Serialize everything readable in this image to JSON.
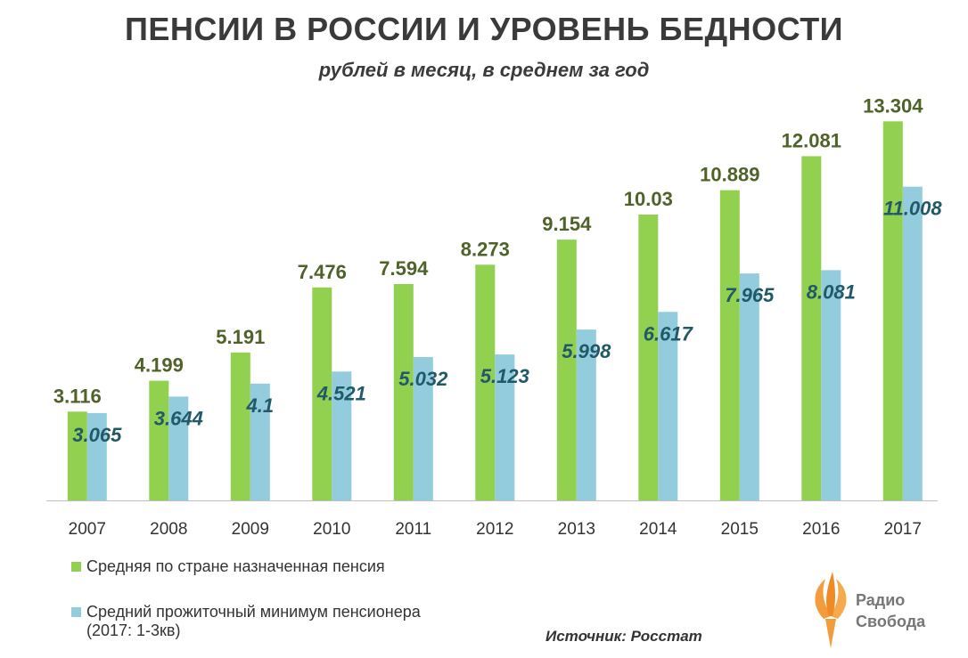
{
  "header": {
    "title": "ПЕНСИИ В РОССИИ И УРОВЕНЬ БЕДНОСТИ",
    "subtitle": "рублей в месяц, в среднем за год"
  },
  "legend": {
    "pension_label": "Средняя по стране назначенная пенсия",
    "minimum_label_line1": "Средний прожиточный минимум пенсионера",
    "minimum_label_line2": "(2017: 1-3кв)"
  },
  "footer": {
    "source": "Источник: Росстат",
    "logo_line1": "Радио",
    "logo_line2": "Свобода"
  },
  "colors": {
    "pension": "#92d050",
    "minimum": "#93cddd",
    "pension_label": "#4f6228",
    "minimum_label": "#215968"
  },
  "chart_data": {
    "type": "bar",
    "categories": [
      "2007",
      "2008",
      "2009",
      "2010",
      "2011",
      "2012",
      "2013",
      "2014",
      "2015",
      "2016",
      "2017"
    ],
    "series": [
      {
        "name": "Средняя по стране назначенная пенсия",
        "values": [
          3.116,
          4.199,
          5.191,
          7.476,
          7.594,
          8.273,
          9.154,
          10.03,
          10.889,
          12.081,
          13.304
        ],
        "labels": [
          "3.116",
          "4.199",
          "5.191",
          "7.476",
          "7.594",
          "8.273",
          "9.154",
          "10.03",
          "10.889",
          "12.081",
          "13.304"
        ]
      },
      {
        "name": "Средний прожиточный минимум пенсионера",
        "values": [
          3.065,
          3.644,
          4.1,
          4.521,
          5.032,
          5.123,
          5.998,
          6.617,
          7.965,
          8.081,
          11.008
        ],
        "labels": [
          "3.065",
          "3.644",
          "4.1",
          "4.521",
          "5.032",
          "5.123",
          "5.998",
          "6.617",
          "7.965",
          "8.081",
          "11.008"
        ]
      }
    ],
    "ylim": [
      0,
      14
    ],
    "grid": false
  }
}
